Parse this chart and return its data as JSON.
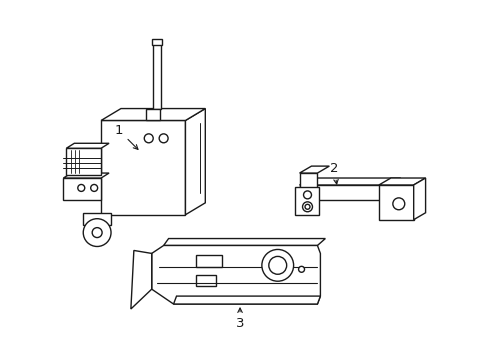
{
  "bg_color": "#ffffff",
  "line_color": "#1a1a1a",
  "line_width": 1.0,
  "label_1": "1",
  "label_2": "2",
  "label_3": "3"
}
